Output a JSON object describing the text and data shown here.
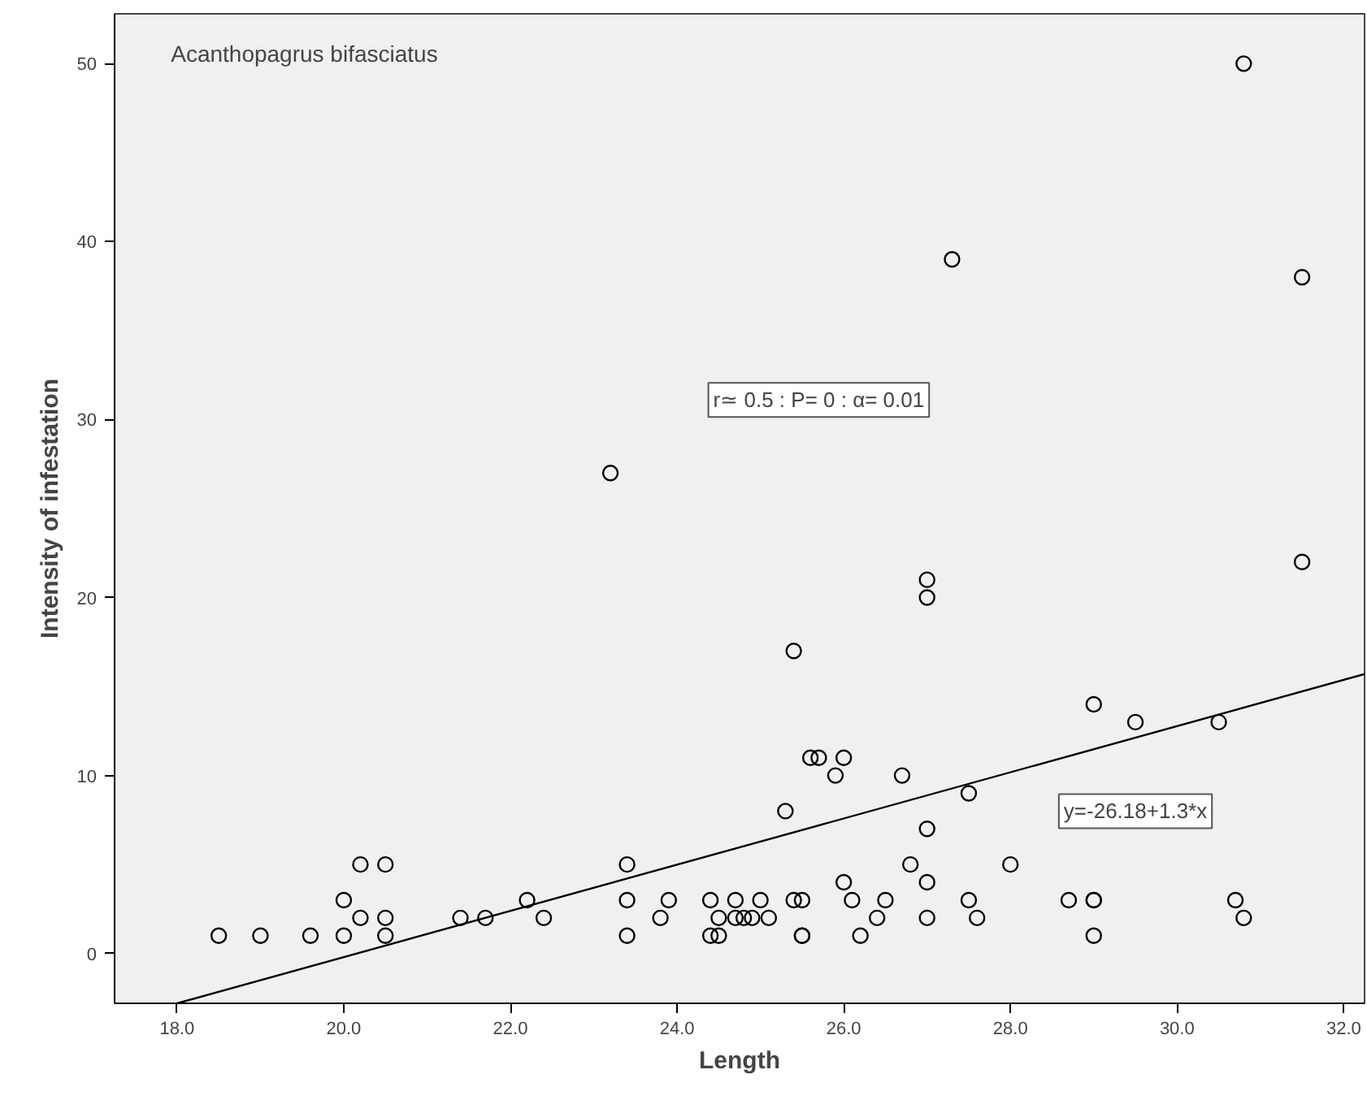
{
  "chart_data": {
    "type": "scatter",
    "title": "Acanthopagrus bifasciatus",
    "xlabel": "Length",
    "ylabel": "Intensity of infestation",
    "xlim": [
      17.25,
      32.25
    ],
    "ylim": [
      -2.8,
      52.8
    ],
    "xticks": [
      {
        "value": 18,
        "label": "18.0"
      },
      {
        "value": 20,
        "label": "20.0"
      },
      {
        "value": 22,
        "label": "22.0"
      },
      {
        "value": 24,
        "label": "24.0"
      },
      {
        "value": 26,
        "label": "26.0"
      },
      {
        "value": 28,
        "label": "28.0"
      },
      {
        "value": 30,
        "label": "30.0"
      },
      {
        "value": 32,
        "label": "32.0"
      }
    ],
    "yticks": [
      0,
      10,
      20,
      30,
      40,
      50
    ],
    "grid": false,
    "marker": "circle",
    "series": [
      {
        "color": "#000000",
        "x": [
          18.5,
          19.0,
          19.6,
          20.0,
          20.0,
          20.2,
          20.2,
          20.5,
          20.5,
          20.5,
          21.4,
          21.7,
          22.2,
          22.4,
          23.2,
          23.4,
          23.4,
          23.4,
          23.8,
          23.9,
          24.4,
          24.4,
          24.5,
          24.5,
          24.7,
          24.7,
          24.8,
          24.9,
          25.0,
          25.1,
          25.3,
          25.4,
          25.4,
          25.5,
          25.5,
          25.5,
          25.6,
          25.7,
          25.9,
          26.0,
          26.0,
          26.1,
          26.2,
          26.4,
          26.5,
          26.7,
          26.8,
          27.0,
          27.0,
          27.0,
          27.0,
          27.0,
          27.3,
          27.5,
          27.5,
          27.6,
          28.0,
          28.7,
          29.0,
          29.0,
          29.0,
          29.0,
          29.5,
          30.5,
          30.7,
          30.8,
          30.8,
          31.5,
          31.5
        ],
        "values": [
          1,
          1,
          1,
          1,
          3,
          2,
          5,
          5,
          2,
          1,
          2,
          2,
          3,
          2,
          27,
          5,
          3,
          1,
          2,
          3,
          3,
          1,
          1,
          2,
          3,
          2,
          2,
          2,
          3,
          2,
          8,
          17,
          3,
          3,
          1,
          1,
          11,
          11,
          10,
          11,
          4,
          3,
          1,
          2,
          3,
          10,
          5,
          21,
          20,
          7,
          4,
          2,
          39,
          9,
          3,
          2,
          5,
          3,
          14,
          3,
          3,
          1,
          13,
          13,
          3,
          2,
          50,
          38,
          22
        ]
      },
      {
        "type": "line",
        "marker": "none",
        "color": "#000000",
        "x": [
          18.0,
          32.25
        ],
        "values": [
          -2.8,
          15.7
        ]
      }
    ],
    "annotations": [
      "y=-26.18+1.3*x",
      "r≃ 0.5 : P= 0 : α= 0.01"
    ]
  }
}
